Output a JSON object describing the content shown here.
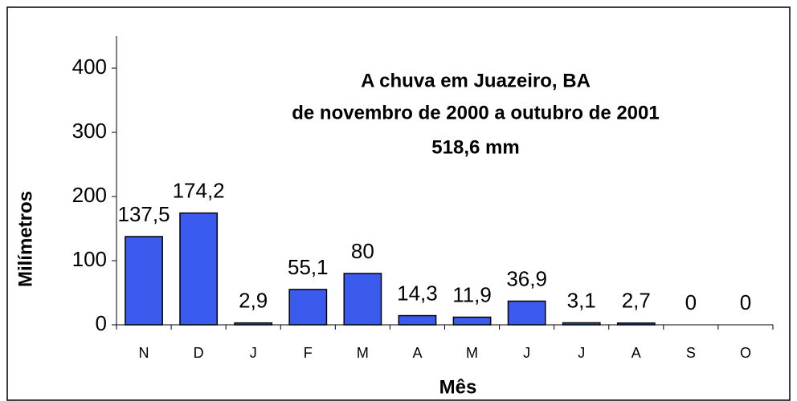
{
  "chart_data": {
    "type": "bar",
    "title": [
      "A chuva em Juazeiro, BA",
      "de novembro de 2000 a outubro de 2001",
      "518,6 mm"
    ],
    "x_label": "Mês",
    "y_label": "Milímetros",
    "categories": [
      "N",
      "D",
      "J",
      "F",
      "M",
      "A",
      "M",
      "J",
      "J",
      "A",
      "S",
      "O"
    ],
    "values": [
      137.5,
      174.2,
      2.9,
      55.1,
      80,
      14.3,
      11.9,
      36.9,
      3.1,
      2.7,
      0,
      0
    ],
    "value_labels": [
      "137,5",
      "174,2",
      "2,9",
      "55,1",
      "80",
      "14,3",
      "11,9",
      "36,9",
      "3,1",
      "2,7",
      "0",
      "0"
    ],
    "color": "#3b5bef",
    "ylim": [
      0,
      450
    ],
    "yticks": [
      0,
      100,
      200,
      300,
      400
    ]
  }
}
